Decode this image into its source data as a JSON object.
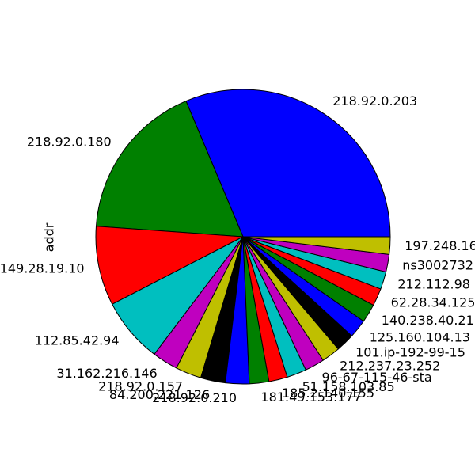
{
  "chart_data": {
    "type": "pie",
    "title": "",
    "ylabel": "addr",
    "start_angle_deg": 0,
    "direction": "counterclockwise",
    "colors": [
      "#0000ff",
      "#008000",
      "#ff0000",
      "#00bfbf",
      "#bf00bf",
      "#bfbf00",
      "#000000"
    ],
    "categories": [
      "218.92.0.203",
      "218.92.0.180",
      "149.28.19.10",
      "112.85.42.94",
      "31.162.216.146",
      "218.92.0.157",
      "84.200.221.126",
      "218.92.0.210",
      "181.49.153.177",
      "185.2.140.155",
      "51.158.103.85",
      "96-67-115-46-sta",
      "212.237.23.252",
      "101.ip-192-99-15",
      "125.160.104.13",
      "140.238.40.21",
      "62.28.34.125",
      "212.112.98",
      "ns3002732",
      "197.248.16"
    ],
    "values": [
      27.7,
      15.5,
      7.7,
      6.3,
      2.5,
      2.5,
      2.4,
      2.3,
      1.9,
      1.8,
      1.9,
      1.9,
      1.8,
      1.8,
      1.8,
      1.8,
      1.7,
      1.7,
      1.7,
      1.7
    ]
  }
}
